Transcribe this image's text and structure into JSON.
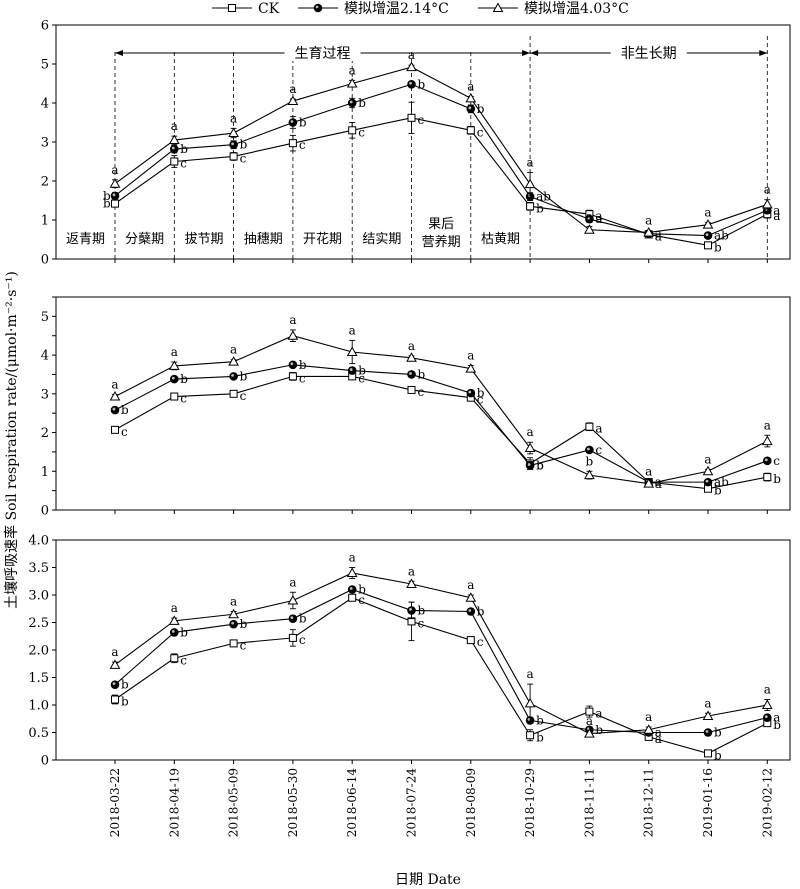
{
  "chart_data": {
    "type": "line",
    "xlabel": "日期 Date",
    "ylabel": "土壤呼吸速率 Soil respiration rate/(μmol·m⁻²·s⁻¹)",
    "categories": [
      "2018-03-22",
      "2018-04-19",
      "2018-05-09",
      "2018-05-30",
      "2018-06-14",
      "2018-07-24",
      "2018-08-09",
      "2018-10-29",
      "2018-11-11",
      "2018-12-11",
      "2019-01-16",
      "2019-02-12"
    ],
    "legend": {
      "placement": "top-center",
      "entries": [
        "CK",
        "模拟增温2.14°C",
        "模拟增温4.03°C"
      ]
    },
    "periods": [
      {
        "label": "生育过程",
        "from": 0,
        "to": 7
      },
      {
        "label": "非生长期",
        "from": 7,
        "to": 11
      }
    ],
    "stages": [
      {
        "label": "返青期",
        "lines": [
          "返青期"
        ]
      },
      {
        "label": "分蘖期",
        "lines": [
          "分蘖期"
        ]
      },
      {
        "label": "拔节期",
        "lines": [
          "拔节期"
        ]
      },
      {
        "label": "抽穗期",
        "lines": [
          "抽穗期"
        ]
      },
      {
        "label": "开花期",
        "lines": [
          "开花期"
        ]
      },
      {
        "label": "结实期",
        "lines": [
          "结实期"
        ]
      },
      {
        "label": "果后营养期",
        "lines": [
          "果后",
          "营养期"
        ]
      },
      {
        "label": "枯黄期",
        "lines": [
          "枯黄期"
        ]
      }
    ],
    "panels": [
      {
        "ylim": [
          0,
          6
        ],
        "yticks": [
          0,
          1,
          2,
          3,
          4,
          5,
          6
        ],
        "ytick_labels": [
          "0",
          "1",
          "2",
          "3",
          "4",
          "5",
          "6"
        ],
        "series": [
          {
            "name": "CK",
            "marker": "square",
            "values": [
              1.42,
              2.5,
              2.63,
              2.97,
              3.3,
              3.62,
              3.3,
              1.35,
              1.15,
              0.63,
              0.35,
              1.15
            ],
            "errors": [
              0.08,
              0.15,
              0.1,
              0.2,
              0.2,
              0.4,
              0.1,
              0.1,
              0.1,
              0.05,
              0.05,
              0.1
            ],
            "sig": [
              "b",
              "c",
              "c",
              "c",
              "c",
              "c",
              "c",
              "b",
              "a",
              "a",
              "b",
              "a"
            ]
          },
          {
            "name": "模拟增温2.14°C",
            "marker": "circle",
            "values": [
              1.62,
              2.82,
              2.93,
              3.5,
              4.0,
              4.48,
              3.85,
              1.6,
              1.02,
              0.65,
              0.6,
              1.25
            ],
            "errors": [
              0.08,
              0.1,
              0.1,
              0.15,
              0.12,
              0.05,
              0.1,
              0.1,
              0.08,
              0.05,
              0.05,
              0.08
            ],
            "sig": [
              "b",
              "b",
              "b",
              "b",
              "b",
              "b",
              "b",
              "ab",
              "a",
              "a",
              "ab",
              "a"
            ]
          },
          {
            "name": "模拟增温4.03°C",
            "marker": "triangle",
            "values": [
              1.93,
              3.05,
              3.23,
              4.05,
              4.5,
              4.92,
              4.12,
              1.92,
              0.75,
              0.68,
              0.88,
              1.4
            ],
            "errors": [
              0.1,
              0.1,
              0.12,
              0.05,
              0.08,
              0.05,
              0.05,
              0.3,
              0.08,
              0.05,
              0.05,
              0.12
            ],
            "sig": [
              "a",
              "a",
              "a",
              "a",
              "a",
              "a",
              "a",
              "a",
              "a",
              "a",
              "a",
              "a"
            ]
          }
        ]
      },
      {
        "ylim": [
          0,
          5.5
        ],
        "yticks": [
          0,
          0.5,
          1,
          1.5,
          2,
          2.5,
          3,
          3.5,
          4,
          4.5,
          5,
          5.5
        ],
        "ytick_labels": [
          "0",
          "",
          "1",
          "",
          "2",
          "",
          "3",
          "",
          "4",
          "",
          "5",
          ""
        ],
        "series": [
          {
            "name": "CK",
            "marker": "square",
            "values": [
              2.07,
              2.93,
              3.0,
              3.45,
              3.45,
              3.1,
              2.9,
              1.2,
              2.15,
              0.72,
              0.55,
              0.85
            ],
            "errors": [
              0.03,
              0.05,
              0.05,
              0.1,
              0.05,
              0.05,
              0.05,
              0.15,
              0.1,
              0.05,
              0.05,
              0.1
            ],
            "sig": [
              "c",
              "c",
              "c",
              "c",
              "c",
              "c",
              "c",
              "b",
              "a",
              "a",
              "b",
              "b"
            ]
          },
          {
            "name": "模拟增温2.14°C",
            "marker": "circle",
            "values": [
              2.58,
              3.38,
              3.45,
              3.75,
              3.6,
              3.5,
              3.02,
              1.15,
              1.55,
              0.72,
              0.72,
              1.27
            ],
            "errors": [
              0.05,
              0.05,
              0.05,
              0.05,
              0.08,
              0.05,
              0.05,
              0.1,
              0.05,
              0.05,
              0.05,
              0.05
            ],
            "sig": [
              "b",
              "b",
              "b",
              "b",
              "b",
              "b",
              "b",
              "b",
              "c",
              "a",
              "ab",
              "c"
            ]
          },
          {
            "name": "模拟增温4.03°C",
            "marker": "triangle",
            "values": [
              2.93,
              3.72,
              3.83,
              4.5,
              4.08,
              3.93,
              3.65,
              1.6,
              0.9,
              0.68,
              1.0,
              1.78
            ],
            "errors": [
              0.05,
              0.1,
              0.05,
              0.15,
              0.3,
              0.05,
              0.08,
              0.15,
              0.1,
              0.05,
              0.05,
              0.15
            ],
            "sig": [
              "a",
              "a",
              "a",
              "a",
              "a",
              "a",
              "a",
              "a",
              "b",
              "a",
              "a",
              "a"
            ]
          }
        ]
      },
      {
        "ylim": [
          0,
          4.0
        ],
        "yticks": [
          0,
          0.5,
          1.0,
          1.5,
          2.0,
          2.5,
          3.0,
          3.5,
          4.0
        ],
        "ytick_labels": [
          "0",
          "0.5",
          "1.0",
          "1.5",
          "2.0",
          "2.5",
          "3.0",
          "3.5",
          "4.0"
        ],
        "series": [
          {
            "name": "CK",
            "marker": "square",
            "values": [
              1.1,
              1.85,
              2.12,
              2.22,
              2.95,
              2.52,
              2.18,
              0.45,
              0.88,
              0.42,
              0.12,
              0.67
            ],
            "errors": [
              0.08,
              0.08,
              0.05,
              0.15,
              0.05,
              0.35,
              0.05,
              0.1,
              0.1,
              0.05,
              0.03,
              0.05
            ],
            "sig": [
              "b",
              "c",
              "c",
              "c",
              "c",
              "c",
              "c",
              "b",
              "a",
              "a",
              "b",
              "b"
            ]
          },
          {
            "name": "模拟增温2.14°C",
            "marker": "circle",
            "values": [
              1.37,
              2.32,
              2.47,
              2.57,
              3.1,
              2.72,
              2.7,
              0.72,
              0.55,
              0.5,
              0.5,
              0.77
            ],
            "errors": [
              0.03,
              0.05,
              0.05,
              0.05,
              0.05,
              0.15,
              0.05,
              0.05,
              0.05,
              0.03,
              0.05,
              0.05
            ],
            "sig": [
              "b",
              "b",
              "b",
              "b",
              "b",
              "b",
              "b",
              "b",
              "b",
              "a",
              "b",
              "a"
            ]
          },
          {
            "name": "模拟增温4.03°C",
            "marker": "triangle",
            "values": [
              1.73,
              2.53,
              2.65,
              2.9,
              3.4,
              3.2,
              2.95,
              1.03,
              0.48,
              0.55,
              0.8,
              1.0
            ],
            "errors": [
              0.05,
              0.05,
              0.05,
              0.15,
              0.1,
              0.05,
              0.05,
              0.35,
              0.05,
              0.05,
              0.05,
              0.1
            ],
            "sig": [
              "a",
              "a",
              "a",
              "a",
              "a",
              "a",
              "a",
              "a",
              "a",
              "a",
              "a",
              "a"
            ]
          }
        ]
      }
    ]
  }
}
